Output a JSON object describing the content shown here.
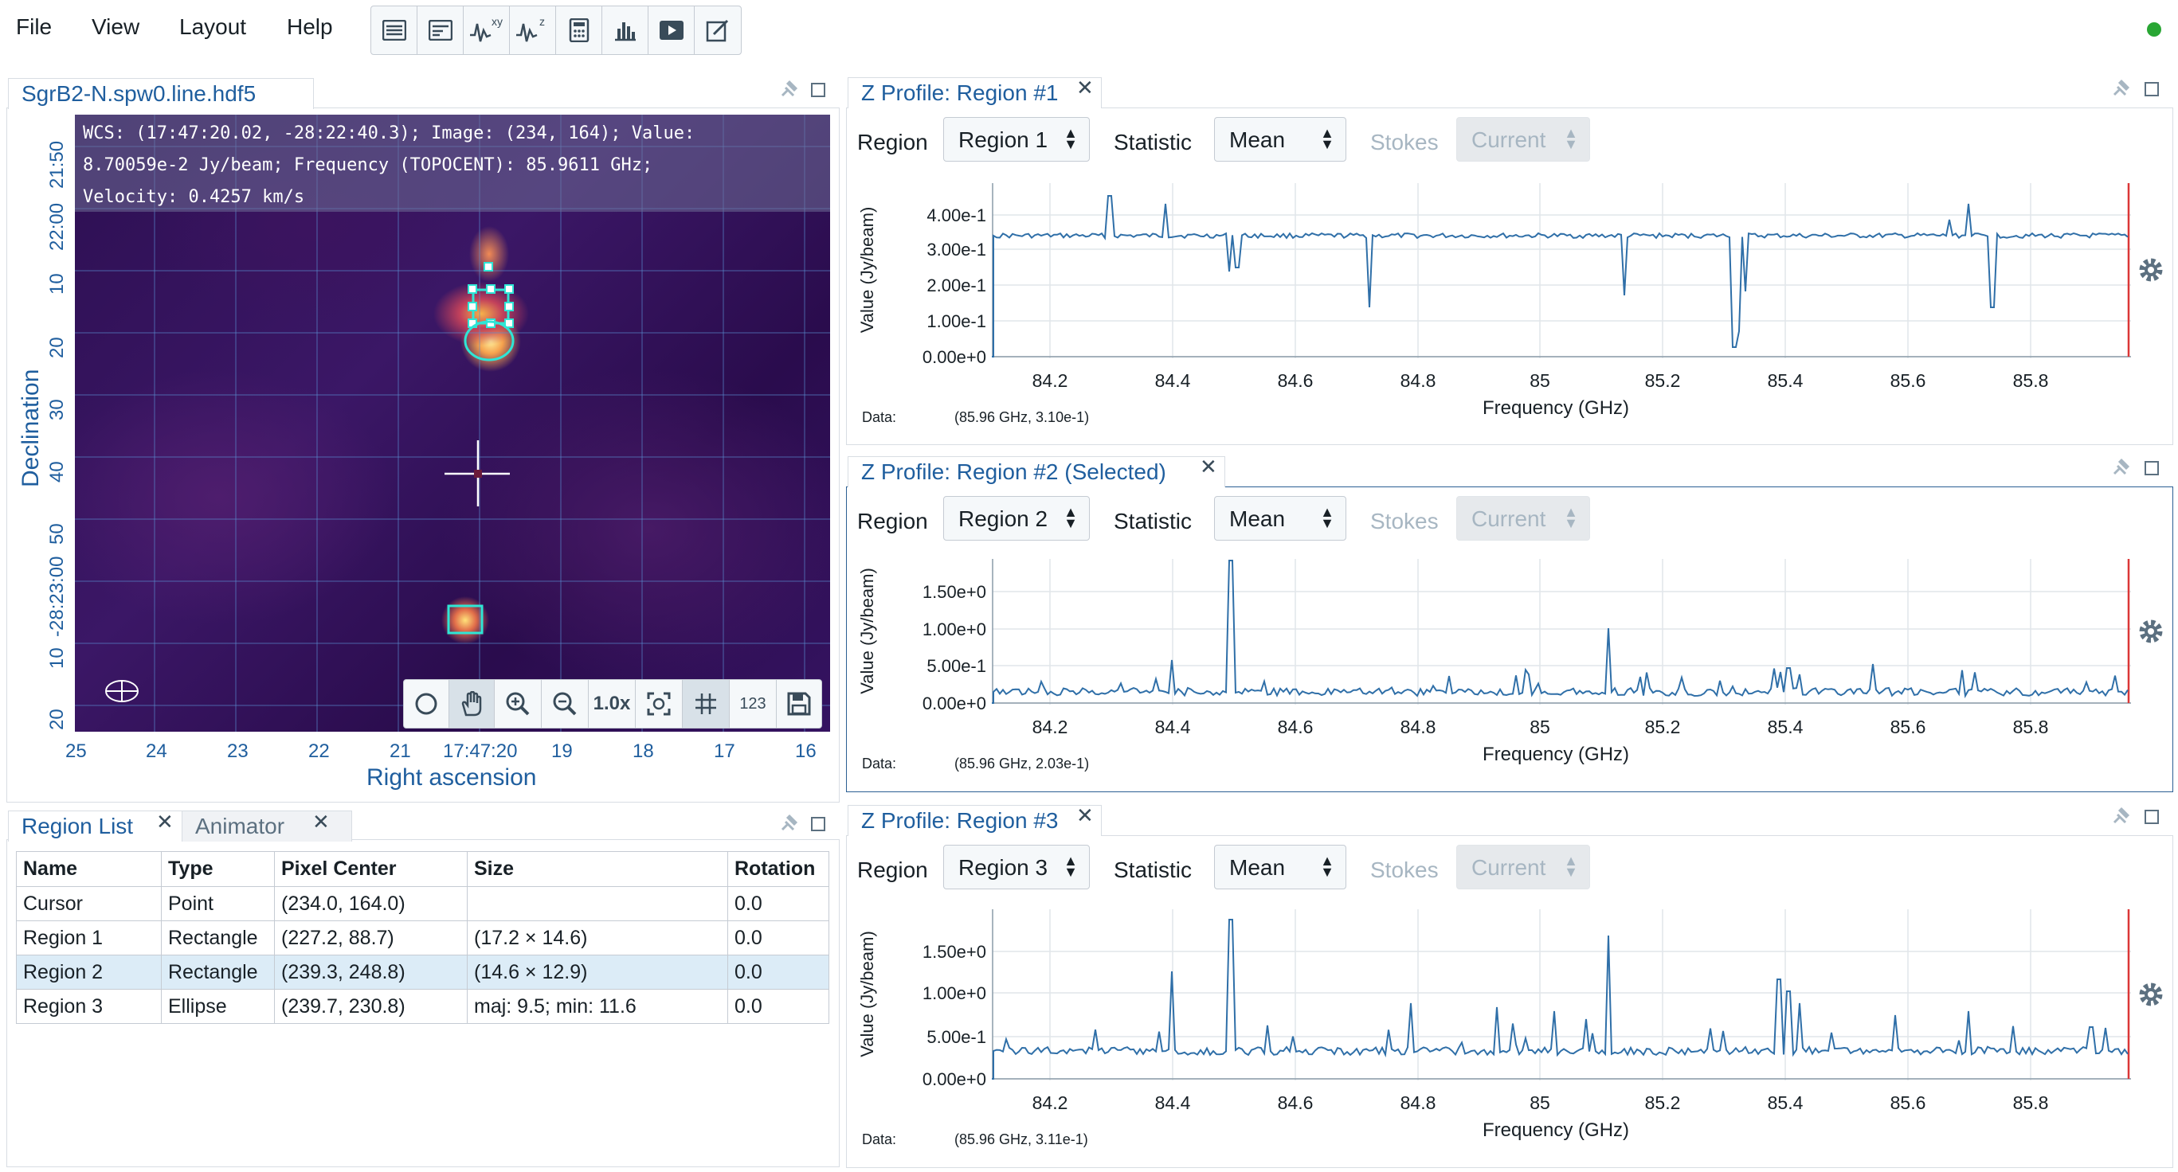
{
  "menu": {
    "file": "File",
    "view": "View",
    "layout": "Layout",
    "help": "Help"
  },
  "toolbar_icons": [
    "region-list-icon",
    "log-icon",
    "spatial-profile-icon",
    "spectral-profile-icon",
    "stats-icon",
    "histogram-icon",
    "animator-icon",
    "render-config-icon"
  ],
  "status_color": "#29a634",
  "image_viewer": {
    "tab": "SgrB2-N.spw0.line.hdf5",
    "wcs_lines": [
      "WCS: (17:47:20.02, -28:22:40.3); Image: (234, 164); Value:",
      "8.70059e-2 Jy/beam; Frequency (TOPOCENT): 85.9611 GHz;",
      "Velocity: 0.4257 km/s"
    ],
    "dec_ticks": [
      "21:50",
      "22:00",
      "10",
      "20",
      "30",
      "40",
      "50",
      "-28:23:00",
      "10",
      "20"
    ],
    "ra_ticks": [
      "25",
      "24",
      "23",
      "22",
      "21",
      "17:47:20",
      "19",
      "18",
      "17",
      "16"
    ],
    "xlabel": "Right ascension",
    "ylabel": "Declination",
    "zoom": "1.0x",
    "toolbar_extra": "123",
    "colormap": "inferno"
  },
  "region_list": {
    "tabs": [
      "Region List",
      "Animator"
    ],
    "columns": [
      "Name",
      "Type",
      "Pixel Center",
      "Size",
      "Rotation"
    ],
    "rows": [
      {
        "name": "Cursor",
        "type": "Point",
        "center": "(234.0, 164.0)",
        "size": "",
        "rotation": "0.0"
      },
      {
        "name": "Region 1",
        "type": "Rectangle",
        "center": "(227.2, 88.7)",
        "size": "(17.2 × 14.6)",
        "rotation": "0.0"
      },
      {
        "name": "Region 2",
        "type": "Rectangle",
        "center": "(239.3, 248.8)",
        "size": "(14.6 × 12.9)",
        "rotation": "0.0"
      },
      {
        "name": "Region 3",
        "type": "Ellipse",
        "center": "(239.7, 230.8)",
        "size": "maj: 9.5; min: 11.6",
        "rotation": "0.0"
      }
    ],
    "selected_row": 2
  },
  "profiles": [
    {
      "title": "Z Profile: Region #1",
      "region_label": "Region",
      "region_value": "Region 1",
      "statistic_label": "Statistic",
      "statistic_value": "Mean",
      "stokes_label": "Stokes",
      "stokes_value": "Current",
      "ylabel": "Value (Jy/beam)",
      "xlabel": "Frequency (GHz)",
      "data_label": "Data:",
      "data_value": "(85.96 GHz, 3.10e-1)",
      "yticks": [
        "4.00e-1",
        "3.00e-1",
        "2.00e-1",
        "1.00e-1",
        "0.00e+0"
      ]
    },
    {
      "title": "Z Profile: Region #2 (Selected)",
      "region_label": "Region",
      "region_value": "Region 2",
      "statistic_label": "Statistic",
      "statistic_value": "Mean",
      "stokes_label": "Stokes",
      "stokes_value": "Current",
      "ylabel": "Value (Jy/beam)",
      "xlabel": "Frequency (GHz)",
      "data_label": "Data:",
      "data_value": "(85.96 GHz, 2.03e-1)",
      "yticks": [
        "1.50e+0",
        "1.00e+0",
        "5.00e-1",
        "0.00e+0"
      ]
    },
    {
      "title": "Z Profile: Region #3",
      "region_label": "Region",
      "region_value": "Region 3",
      "statistic_label": "Statistic",
      "statistic_value": "Mean",
      "stokes_label": "Stokes",
      "stokes_value": "Current",
      "ylabel": "Value (Jy/beam)",
      "xlabel": "Frequency (GHz)",
      "data_label": "Data:",
      "data_value": "(85.96 GHz, 3.11e-1)",
      "yticks": [
        "1.50e+0",
        "1.00e+0",
        "5.00e-1",
        "0.00e+0"
      ]
    }
  ],
  "xticks": [
    "84.2",
    "84.4",
    "84.6",
    "84.8",
    "85",
    "85.2",
    "85.4",
    "85.6",
    "85.8"
  ],
  "line_color": "#2f6fa8",
  "marker_color": "#db3737"
}
